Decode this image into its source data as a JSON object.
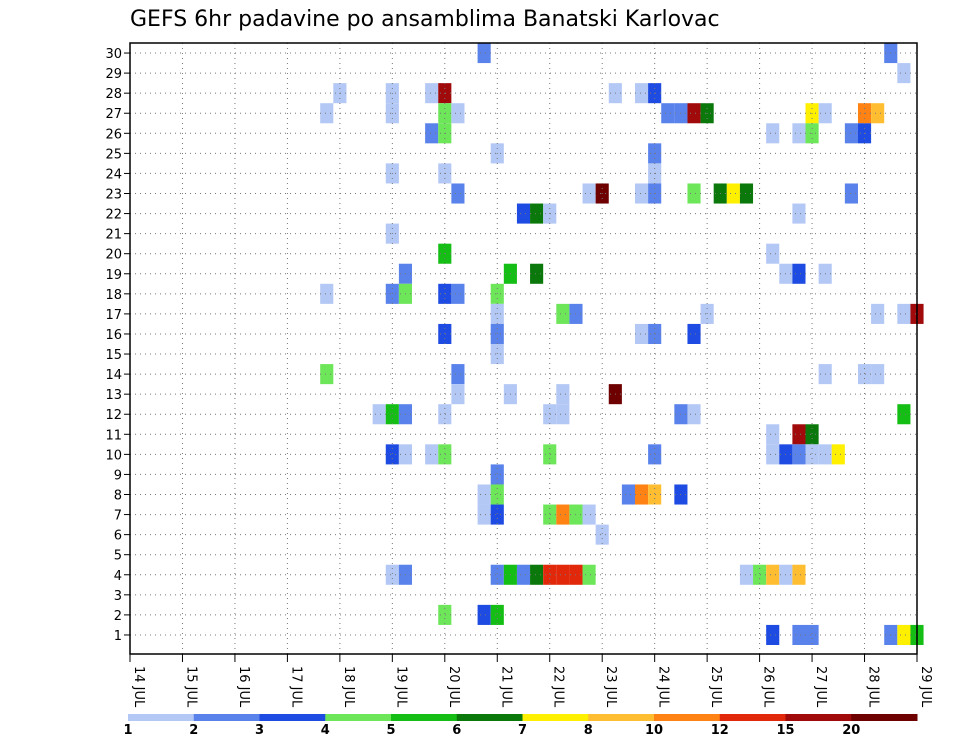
{
  "chart_data": {
    "type": "heatmap",
    "title": "GEFS 6hr padavine po ansamblima Banatski Karlovac",
    "xlabel": "",
    "ylabel": "",
    "x_tick_labels": [
      "14 JUL",
      "15 JUL",
      "16 JUL",
      "17 JUL",
      "18 JUL",
      "19 JUL",
      "20 JUL",
      "21 JUL",
      "22 JUL",
      "23 JUL",
      "24 JUL",
      "25 JUL",
      "26 JUL",
      "27 JUL",
      "28 JUL",
      "29 JUL"
    ],
    "y_tick_labels": [
      "1",
      "2",
      "3",
      "4",
      "5",
      "6",
      "7",
      "8",
      "9",
      "10",
      "11",
      "12",
      "13",
      "14",
      "15",
      "16",
      "17",
      "18",
      "19",
      "20",
      "21",
      "22",
      "23",
      "24",
      "25",
      "26",
      "27",
      "28",
      "29",
      "30"
    ],
    "xlim": [
      0,
      15
    ],
    "ylim": [
      0,
      30
    ],
    "time_step_days": 0.25,
    "grid": true,
    "legend_position": "bottom",
    "color_scale": {
      "boundary_labels": [
        "1",
        "2",
        "3",
        "4",
        "5",
        "6",
        "7",
        "8",
        "10",
        "12",
        "15",
        "20"
      ],
      "colors": [
        "#b4c8f5",
        "#5a82eb",
        "#1e4be1",
        "#6ee65a",
        "#14be14",
        "#0a780a",
        "#fff000",
        "#ffbe32",
        "#ff8214",
        "#e1280a",
        "#a00a0a",
        "#6e0000"
      ]
    },
    "cells_format": "[day_offset_from_14_JUL, member, color_class_index]",
    "cells": [
      [
        6.75,
        30,
        2
      ],
      [
        14.5,
        30,
        2
      ],
      [
        14.75,
        29,
        1
      ],
      [
        4,
        28,
        1
      ],
      [
        5,
        28,
        1
      ],
      [
        5.75,
        28,
        1
      ],
      [
        6,
        28,
        11
      ],
      [
        9.25,
        28,
        1
      ],
      [
        9.75,
        28,
        1
      ],
      [
        10,
        28,
        3
      ],
      [
        3.75,
        27,
        1
      ],
      [
        5,
        27,
        1
      ],
      [
        6,
        27,
        4
      ],
      [
        6.25,
        27,
        1
      ],
      [
        10.25,
        27,
        2
      ],
      [
        10.5,
        27,
        2
      ],
      [
        10.75,
        27,
        11
      ],
      [
        11,
        27,
        6
      ],
      [
        13,
        27,
        7
      ],
      [
        13.25,
        27,
        1
      ],
      [
        14,
        27,
        9
      ],
      [
        14.25,
        27,
        8
      ],
      [
        5.75,
        26,
        2
      ],
      [
        6,
        26,
        4
      ],
      [
        12.25,
        26,
        1
      ],
      [
        12.75,
        26,
        1
      ],
      [
        13,
        26,
        4
      ],
      [
        13.75,
        26,
        2
      ],
      [
        14,
        26,
        3
      ],
      [
        7,
        25,
        1
      ],
      [
        10,
        25,
        2
      ],
      [
        5,
        24,
        1
      ],
      [
        6,
        24,
        1
      ],
      [
        10,
        24,
        1
      ],
      [
        6.25,
        23,
        2
      ],
      [
        8.75,
        23,
        1
      ],
      [
        9,
        23,
        12
      ],
      [
        9.75,
        23,
        1
      ],
      [
        10,
        23,
        2
      ],
      [
        10.75,
        23,
        4
      ],
      [
        11.25,
        23,
        6
      ],
      [
        11.5,
        23,
        7
      ],
      [
        11.75,
        23,
        6
      ],
      [
        13.75,
        23,
        2
      ],
      [
        7.5,
        22,
        3
      ],
      [
        7.75,
        22,
        6
      ],
      [
        8,
        22,
        1
      ],
      [
        12.75,
        22,
        1
      ],
      [
        5,
        21,
        1
      ],
      [
        6,
        20,
        5
      ],
      [
        12.25,
        20,
        1
      ],
      [
        5.25,
        19,
        2
      ],
      [
        7.25,
        19,
        5
      ],
      [
        7.75,
        19,
        6
      ],
      [
        12.5,
        19,
        1
      ],
      [
        12.75,
        19,
        3
      ],
      [
        13.25,
        19,
        1
      ],
      [
        3.75,
        18,
        1
      ],
      [
        5,
        18,
        2
      ],
      [
        5.25,
        18,
        4
      ],
      [
        6,
        18,
        3
      ],
      [
        6.25,
        18,
        2
      ],
      [
        7,
        18,
        4
      ],
      [
        7,
        17,
        1
      ],
      [
        8.25,
        17,
        4
      ],
      [
        8.5,
        17,
        2
      ],
      [
        11,
        17,
        1
      ],
      [
        14.25,
        17,
        1
      ],
      [
        14.75,
        17,
        1
      ],
      [
        15,
        17,
        11
      ],
      [
        6,
        16,
        3
      ],
      [
        7,
        16,
        2
      ],
      [
        9.75,
        16,
        1
      ],
      [
        10,
        16,
        2
      ],
      [
        10.75,
        16,
        3
      ],
      [
        7,
        15,
        1
      ],
      [
        3.75,
        14,
        4
      ],
      [
        6.25,
        14,
        2
      ],
      [
        13.25,
        14,
        1
      ],
      [
        14,
        14,
        1
      ],
      [
        14.25,
        14,
        1
      ],
      [
        6.25,
        13,
        1
      ],
      [
        7.25,
        13,
        1
      ],
      [
        8.25,
        13,
        1
      ],
      [
        9.25,
        13,
        12
      ],
      [
        4.75,
        12,
        1
      ],
      [
        5,
        12,
        5
      ],
      [
        5.25,
        12,
        2
      ],
      [
        6,
        12,
        1
      ],
      [
        8,
        12,
        1
      ],
      [
        8.25,
        12,
        1
      ],
      [
        10.5,
        12,
        2
      ],
      [
        10.75,
        12,
        1
      ],
      [
        14.75,
        12,
        5
      ],
      [
        12.25,
        11,
        1
      ],
      [
        12.75,
        11,
        11
      ],
      [
        13,
        11,
        6
      ],
      [
        5,
        10,
        3
      ],
      [
        5.25,
        10,
        1
      ],
      [
        5.75,
        10,
        1
      ],
      [
        6,
        10,
        4
      ],
      [
        8,
        10,
        4
      ],
      [
        10,
        10,
        2
      ],
      [
        12.25,
        10,
        1
      ],
      [
        12.5,
        10,
        3
      ],
      [
        12.75,
        10,
        2
      ],
      [
        13,
        10,
        1
      ],
      [
        13.25,
        10,
        1
      ],
      [
        13.5,
        10,
        7
      ],
      [
        7,
        9,
        2
      ],
      [
        6.75,
        8,
        1
      ],
      [
        7,
        8,
        4
      ],
      [
        9.5,
        8,
        2
      ],
      [
        9.75,
        8,
        9
      ],
      [
        10,
        8,
        8
      ],
      [
        10.5,
        8,
        3
      ],
      [
        6.75,
        7,
        1
      ],
      [
        7,
        7,
        3
      ],
      [
        8,
        7,
        4
      ],
      [
        8.25,
        7,
        9
      ],
      [
        8.5,
        7,
        4
      ],
      [
        8.75,
        7,
        1
      ],
      [
        9,
        6,
        1
      ],
      [
        5,
        4,
        1
      ],
      [
        5.25,
        4,
        2
      ],
      [
        7,
        4,
        2
      ],
      [
        7.25,
        4,
        5
      ],
      [
        7.5,
        4,
        2
      ],
      [
        7.75,
        4,
        6
      ],
      [
        8,
        4,
        10
      ],
      [
        8.25,
        4,
        10
      ],
      [
        8.5,
        4,
        10
      ],
      [
        8.75,
        4,
        4
      ],
      [
        11.75,
        4,
        1
      ],
      [
        12,
        4,
        4
      ],
      [
        12.25,
        4,
        8
      ],
      [
        12.5,
        4,
        1
      ],
      [
        12.75,
        4,
        8
      ],
      [
        6,
        2,
        4
      ],
      [
        6.75,
        2,
        3
      ],
      [
        7,
        2,
        5
      ],
      [
        12.25,
        1,
        3
      ],
      [
        12.75,
        1,
        2
      ],
      [
        13,
        1,
        2
      ],
      [
        14.5,
        1,
        2
      ],
      [
        14.75,
        1,
        7
      ],
      [
        15,
        1,
        5
      ]
    ]
  }
}
